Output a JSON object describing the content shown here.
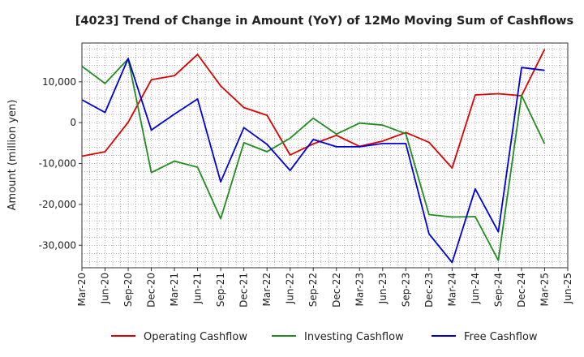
{
  "chart_data": {
    "type": "line",
    "title": "[4023]  Trend of Change in Amount (YoY) of 12Mo Moving Sum of Cashflows",
    "xlabel": "",
    "ylabel": "Amount (million yen)",
    "ylim": [
      -35500,
      19500
    ],
    "yticks": [
      10000,
      0,
      -10000,
      -20000,
      -30000
    ],
    "ytick_labels": [
      "10,000",
      "0",
      "-10,000",
      "-20,000",
      "-30,000"
    ],
    "categories": [
      "Mar-20",
      "Jun-20",
      "Sep-20",
      "Dec-20",
      "Mar-21",
      "Jun-21",
      "Sep-21",
      "Dec-21",
      "Mar-22",
      "Jun-22",
      "Sep-22",
      "Dec-22",
      "Mar-23",
      "Jun-23",
      "Sep-23",
      "Dec-23",
      "Mar-24",
      "Jun-24",
      "Sep-24",
      "Dec-24",
      "Mar-25",
      "Jun-25"
    ],
    "grid": true,
    "legend_position": "bottom",
    "series": [
      {
        "name": "Operating Cashflow",
        "color": "#dd0000",
        "values": [
          -8200,
          -7100,
          100,
          10500,
          11500,
          16700,
          9000,
          3700,
          1800,
          -7900,
          -5200,
          -3100,
          -5800,
          -4500,
          -2400,
          -4800,
          -11100,
          6800,
          7100,
          6600,
          18000,
          null
        ]
      },
      {
        "name": "Investing Cashflow",
        "color": "#228B22",
        "values": [
          13800,
          9600,
          15600,
          -12200,
          -9400,
          -10900,
          -23500,
          -4900,
          -7100,
          -3800,
          1100,
          -2800,
          -100,
          -600,
          -2700,
          -22500,
          -23100,
          -23000,
          -33700,
          6700,
          -5200,
          null
        ]
      },
      {
        "name": "Free Cashflow",
        "color": "#0000dd",
        "values": [
          5600,
          2500,
          15700,
          -1800,
          2100,
          5800,
          -14500,
          -1200,
          -5300,
          -11700,
          -4100,
          -5900,
          -5900,
          -5100,
          -5100,
          -27200,
          -34200,
          -16200,
          -26700,
          13500,
          12800,
          null
        ]
      }
    ]
  }
}
